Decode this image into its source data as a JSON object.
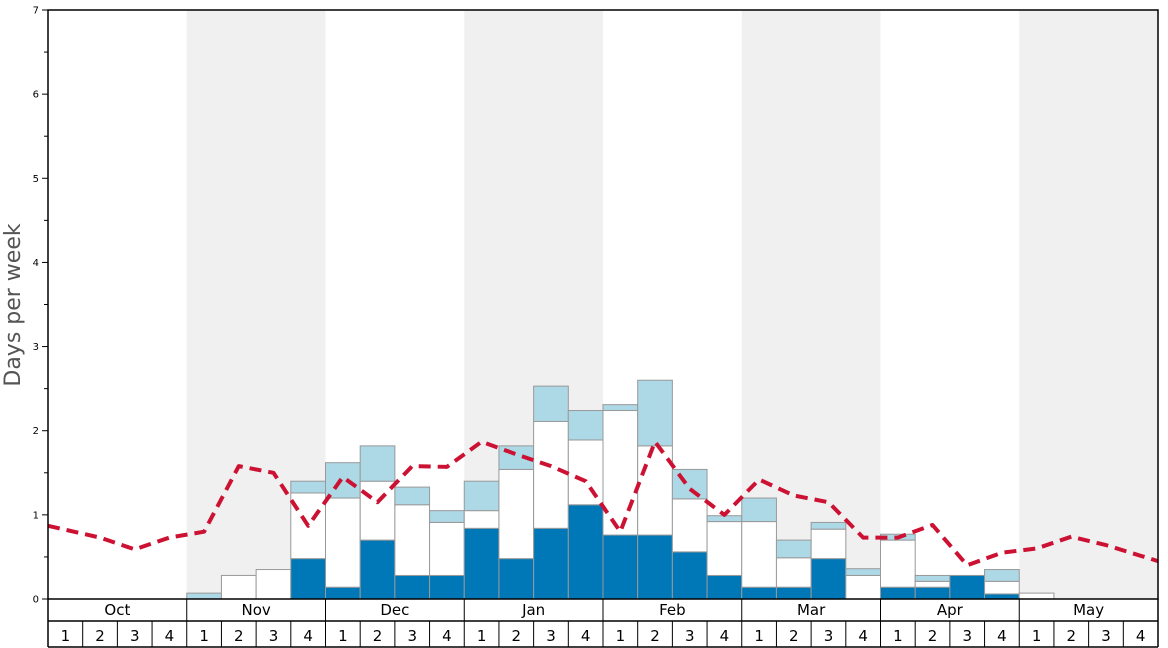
{
  "chart_data": {
    "type": "bar",
    "ylabel": "Days per week",
    "ylim": [
      0,
      7
    ],
    "yticks": [
      "0",
      "1",
      "2",
      "3",
      "4",
      "5",
      "6",
      "7"
    ],
    "months": [
      "Oct",
      "Nov",
      "Dec",
      "Jan",
      "Feb",
      "Mar",
      "Apr",
      "May"
    ],
    "week_labels": [
      "1",
      "2",
      "3",
      "4"
    ],
    "background_bands": "alternating white / light gray by month",
    "colors": {
      "dark": "#0077b6",
      "white": "#ffffff",
      "light": "#add8e6",
      "line": "#cc1133",
      "band": "#f0f0f0"
    },
    "series": [
      {
        "values": [
          0,
          0,
          0,
          0,
          0,
          0,
          0,
          0.48,
          0.14,
          0.7,
          0.28,
          0.28,
          0.84,
          0.48,
          0.84,
          1.12,
          0.76,
          0.76,
          0.56,
          0.28,
          0.14,
          0.14,
          0.48,
          0,
          0.14,
          0.14,
          0.28,
          0.06,
          0,
          0,
          0,
          0
        ]
      },
      {
        "values": [
          0,
          0,
          0,
          0,
          0,
          0.28,
          0.35,
          0.78,
          1.06,
          0.7,
          0.84,
          0.63,
          0.21,
          1.06,
          1.27,
          0.77,
          1.48,
          1.06,
          0.63,
          0.64,
          0.78,
          0.35,
          0.35,
          0.28,
          0.56,
          0.07,
          0,
          0.15,
          0.07,
          0,
          0,
          0
        ]
      },
      {
        "values": [
          0,
          0,
          0,
          0,
          0.07,
          0,
          0,
          0.14,
          0.42,
          0.42,
          0.21,
          0.14,
          0.35,
          0.28,
          0.42,
          0.35,
          0.07,
          0.78,
          0.35,
          0.07,
          0.28,
          0.21,
          0.08,
          0.08,
          0.07,
          0.07,
          0,
          0.14,
          0,
          0,
          0,
          0
        ]
      }
    ],
    "line_series": {
      "style": "dashed",
      "values": [
        0.87,
        0.73,
        0.59,
        0.73,
        0.8,
        1.58,
        1.5,
        0.87,
        1.45,
        1.15,
        1.58,
        1.57,
        1.87,
        1.72,
        1.58,
        1.4,
        0.8,
        1.87,
        1.31,
        1.0,
        1.42,
        1.23,
        1.15,
        0.73,
        0.73,
        0.88,
        0.4,
        0.55,
        0.6,
        0.74,
        0.64,
        0.45
      ]
    }
  }
}
